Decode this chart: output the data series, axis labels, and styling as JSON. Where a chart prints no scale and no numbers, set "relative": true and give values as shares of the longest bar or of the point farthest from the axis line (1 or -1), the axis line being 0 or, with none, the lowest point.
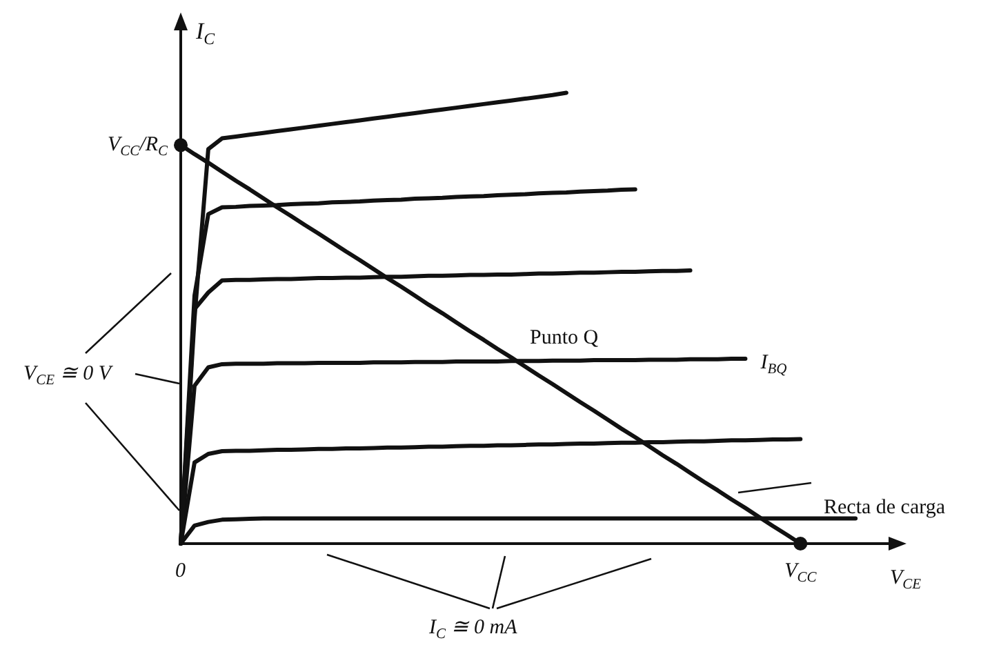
{
  "chart_data": {
    "type": "line",
    "xlabel": "V$_{CE}$",
    "ylabel": "I$_{C}$",
    "relative": true,
    "tick_labels": "x",
    "categories": [
      "0",
      null,
      null,
      null,
      null,
      null,
      null,
      null,
      null,
      null,
      null,
      null,
      null,
      null,
      null,
      null,
      null,
      null,
      null,
      null,
      null,
      null,
      null,
      null,
      null,
      null,
      null,
      null,
      null,
      null,
      null,
      null,
      null,
      null,
      null,
      null,
      null,
      null,
      null,
      null,
      null,
      null,
      null,
      null,
      null,
      "V$_{CC}$",
      null,
      null,
      null,
      null,
      null,
      null,
      null
    ],
    "series": [
      {
        "color": "#111111",
        "values": [
          0,
          0.5,
          0.875,
          0.899,
          0.903,
          0.907,
          0.911,
          0.915,
          0.919,
          0.923,
          0.927,
          0.931,
          0.935,
          0.939,
          0.943,
          0.947,
          0.951,
          0.955,
          0.959,
          0.963,
          0.967,
          0.971,
          0.975,
          0.979,
          0.983,
          0.987,
          0.991,
          0.995,
          1,
          null,
          null,
          null,
          null,
          null,
          null,
          null,
          null,
          null,
          null,
          null,
          null,
          null,
          null,
          null,
          null,
          null,
          null,
          null,
          null,
          null,
          null,
          null,
          null
        ]
      },
      {
        "color": "#111111",
        "values": [
          0,
          0.55,
          0.731,
          0.746,
          0.747,
          0.749,
          0.75,
          0.751,
          0.753,
          0.754,
          0.755,
          0.757,
          0.758,
          0.759,
          0.761,
          0.762,
          0.763,
          0.765,
          0.766,
          0.767,
          0.769,
          0.77,
          0.771,
          0.773,
          0.774,
          0.775,
          0.777,
          0.778,
          0.779,
          0.781,
          0.782,
          0.783,
          0.785,
          0.786,
          null,
          null,
          null,
          null,
          null,
          null,
          null,
          null,
          null,
          null,
          null,
          null,
          null,
          null,
          null,
          null,
          null,
          null,
          null
        ]
      },
      {
        "color": "#111111",
        "values": [
          0,
          0.52,
          0.557,
          0.584,
          0.585,
          0.585,
          0.586,
          0.587,
          0.587,
          0.588,
          0.589,
          0.589,
          0.59,
          0.59,
          0.591,
          0.592,
          0.592,
          0.593,
          0.594,
          0.594,
          0.595,
          0.596,
          0.596,
          0.597,
          0.597,
          0.598,
          0.599,
          0.599,
          0.6,
          0.601,
          0.601,
          0.602,
          0.603,
          0.603,
          0.604,
          0.605,
          0.605,
          0.606,
          null,
          null,
          null,
          null,
          null,
          null,
          null,
          null,
          null,
          null,
          null,
          null,
          null,
          null,
          null
        ]
      },
      {
        "name": "I$_{BQ}$",
        "color": "#111111",
        "values": [
          0,
          0.35,
          0.391,
          0.398,
          0.399,
          0.399,
          0.399,
          0.4,
          0.4,
          0.4,
          0.401,
          0.401,
          0.401,
          0.401,
          0.402,
          0.402,
          0.402,
          0.403,
          0.403,
          0.403,
          0.404,
          0.404,
          0.404,
          0.404,
          0.405,
          0.405,
          0.405,
          0.406,
          0.406,
          0.406,
          0.407,
          0.407,
          0.407,
          0.407,
          0.408,
          0.408,
          0.408,
          0.409,
          0.409,
          0.409,
          0.41,
          0.41,
          null,
          null,
          null,
          null,
          null,
          null,
          null,
          null,
          null,
          null,
          null
        ]
      },
      {
        "color": "#111111",
        "values": [
          0,
          0.18,
          0.199,
          0.205,
          0.206,
          0.206,
          0.207,
          0.208,
          0.208,
          0.209,
          0.21,
          0.21,
          0.211,
          0.211,
          0.212,
          0.213,
          0.213,
          0.214,
          0.215,
          0.215,
          0.216,
          0.217,
          0.217,
          0.218,
          0.218,
          0.219,
          0.22,
          0.22,
          0.221,
          0.222,
          0.222,
          0.223,
          0.224,
          0.224,
          0.225,
          0.225,
          0.226,
          0.227,
          0.227,
          0.228,
          0.229,
          0.229,
          0.23,
          0.231,
          0.231,
          0.232,
          null,
          null,
          null,
          null,
          null,
          null,
          null
        ]
      },
      {
        "color": "#111111",
        "values": [
          0,
          0.04,
          0.048,
          0.053,
          0.054,
          0.055,
          0.056,
          0.056,
          0.056,
          0.056,
          0.056,
          0.056,
          0.056,
          0.056,
          0.056,
          0.056,
          0.056,
          0.056,
          0.056,
          0.056,
          0.056,
          0.056,
          0.056,
          0.056,
          0.056,
          0.056,
          0.056,
          0.056,
          0.056,
          0.056,
          0.056,
          0.056,
          0.056,
          0.056,
          0.056,
          0.056,
          0.056,
          0.056,
          0.056,
          0.056,
          0.056,
          0.056,
          0.056,
          0.056,
          0.056,
          0.056,
          0.056,
          0.056,
          0.056,
          0.056,
          null,
          null,
          null
        ]
      },
      {
        "color": "#111111",
        "values": [
          0.884,
          0.864,
          0.845,
          0.825,
          0.805,
          0.786,
          0.766,
          0.746,
          0.727,
          0.707,
          0.688,
          0.668,
          0.648,
          0.629,
          0.609,
          0.589,
          0.57,
          0.55,
          0.53,
          0.511,
          0.491,
          0.471,
          0.452,
          0.432,
          0.413,
          0.393,
          0.373,
          0.354,
          0.334,
          0.314,
          0.295,
          0.275,
          0.255,
          0.236,
          0.216,
          0.196,
          0.177,
          0.157,
          0.137,
          0.118,
          0.098,
          0.079,
          0.059,
          0.039,
          0.02,
          0,
          null,
          null,
          null,
          null,
          null,
          null,
          null
        ]
      },
      {
        "type": "scatter",
        "color": "#111111",
        "marker": "circle",
        "x": [
          "0",
          "V$_{CC}$"
        ],
        "values": [
          0.884,
          0
        ]
      }
    ],
    "annotations": [
      {
        "text": "V$_{CC}$/R$_{C}$",
        "x": "0",
        "y": 0.884
      },
      {
        "text": "Punto Q",
        "y": 0.4
      },
      "Recta de carga",
      "V$_{CE}$ ≅ 0 V",
      "I$_{C}$ ≅ 0 mA"
    ]
  }
}
